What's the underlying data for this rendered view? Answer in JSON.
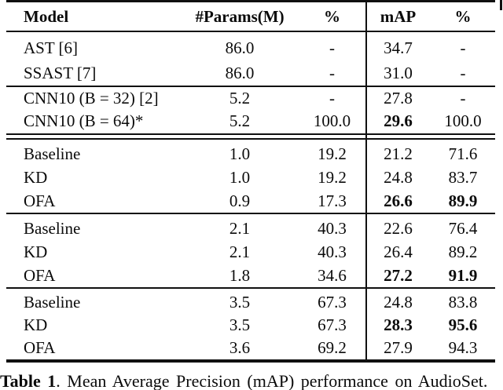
{
  "colors": {
    "background": "#ffffff",
    "text": "#0b0b0b",
    "rule": "#101010"
  },
  "table": {
    "headers": {
      "model": "Model",
      "params": "#Params(M)",
      "params_pct": "%",
      "map": "mAP",
      "map_pct": "%"
    },
    "groups": [
      {
        "rows": [
          {
            "model": "AST [6]",
            "params": "86.0",
            "params_pct": "-",
            "map": "34.7",
            "map_pct": "-"
          },
          {
            "model": "SSAST [7]",
            "params": "86.0",
            "params_pct": "-",
            "map": "31.0",
            "map_pct": "-"
          }
        ]
      },
      {
        "rows": [
          {
            "model": "CNN10 (B = 32) [2]",
            "params": "5.2",
            "params_pct": "-",
            "map": "27.8",
            "map_pct": "-"
          },
          {
            "model": "CNN10 (B = 64)*",
            "params": "5.2",
            "params_pct": "100.0",
            "map": "29.6",
            "map_pct": "100.0"
          }
        ]
      },
      {
        "rows": [
          {
            "model": "Baseline",
            "params": "1.0",
            "params_pct": "19.2",
            "map": "21.2",
            "map_pct": "71.6"
          },
          {
            "model": "KD",
            "params": "1.0",
            "params_pct": "19.2",
            "map": "24.8",
            "map_pct": "83.7"
          },
          {
            "model": "OFA",
            "params": "0.9",
            "params_pct": "17.3",
            "map": "26.6",
            "map_pct": "89.9"
          }
        ]
      },
      {
        "rows": [
          {
            "model": "Baseline",
            "params": "2.1",
            "params_pct": "40.3",
            "map": "22.6",
            "map_pct": "76.4"
          },
          {
            "model": "KD",
            "params": "2.1",
            "params_pct": "40.3",
            "map": "26.4",
            "map_pct": "89.2"
          },
          {
            "model": "OFA",
            "params": "1.8",
            "params_pct": "34.6",
            "map": "27.2",
            "map_pct": "91.9"
          }
        ]
      },
      {
        "rows": [
          {
            "model": "Baseline",
            "params": "3.5",
            "params_pct": "67.3",
            "map": "24.8",
            "map_pct": "83.8"
          },
          {
            "model": "KD",
            "params": "3.5",
            "params_pct": "67.3",
            "map": "28.3",
            "map_pct": "95.6"
          },
          {
            "model": "OFA",
            "params": "3.6",
            "params_pct": "69.2",
            "map": "27.9",
            "map_pct": "94.3"
          }
        ]
      }
    ]
  },
  "caption": {
    "label": "Table 1",
    "text": ". Mean Average Precision (mAP) performance on AudioSet."
  }
}
